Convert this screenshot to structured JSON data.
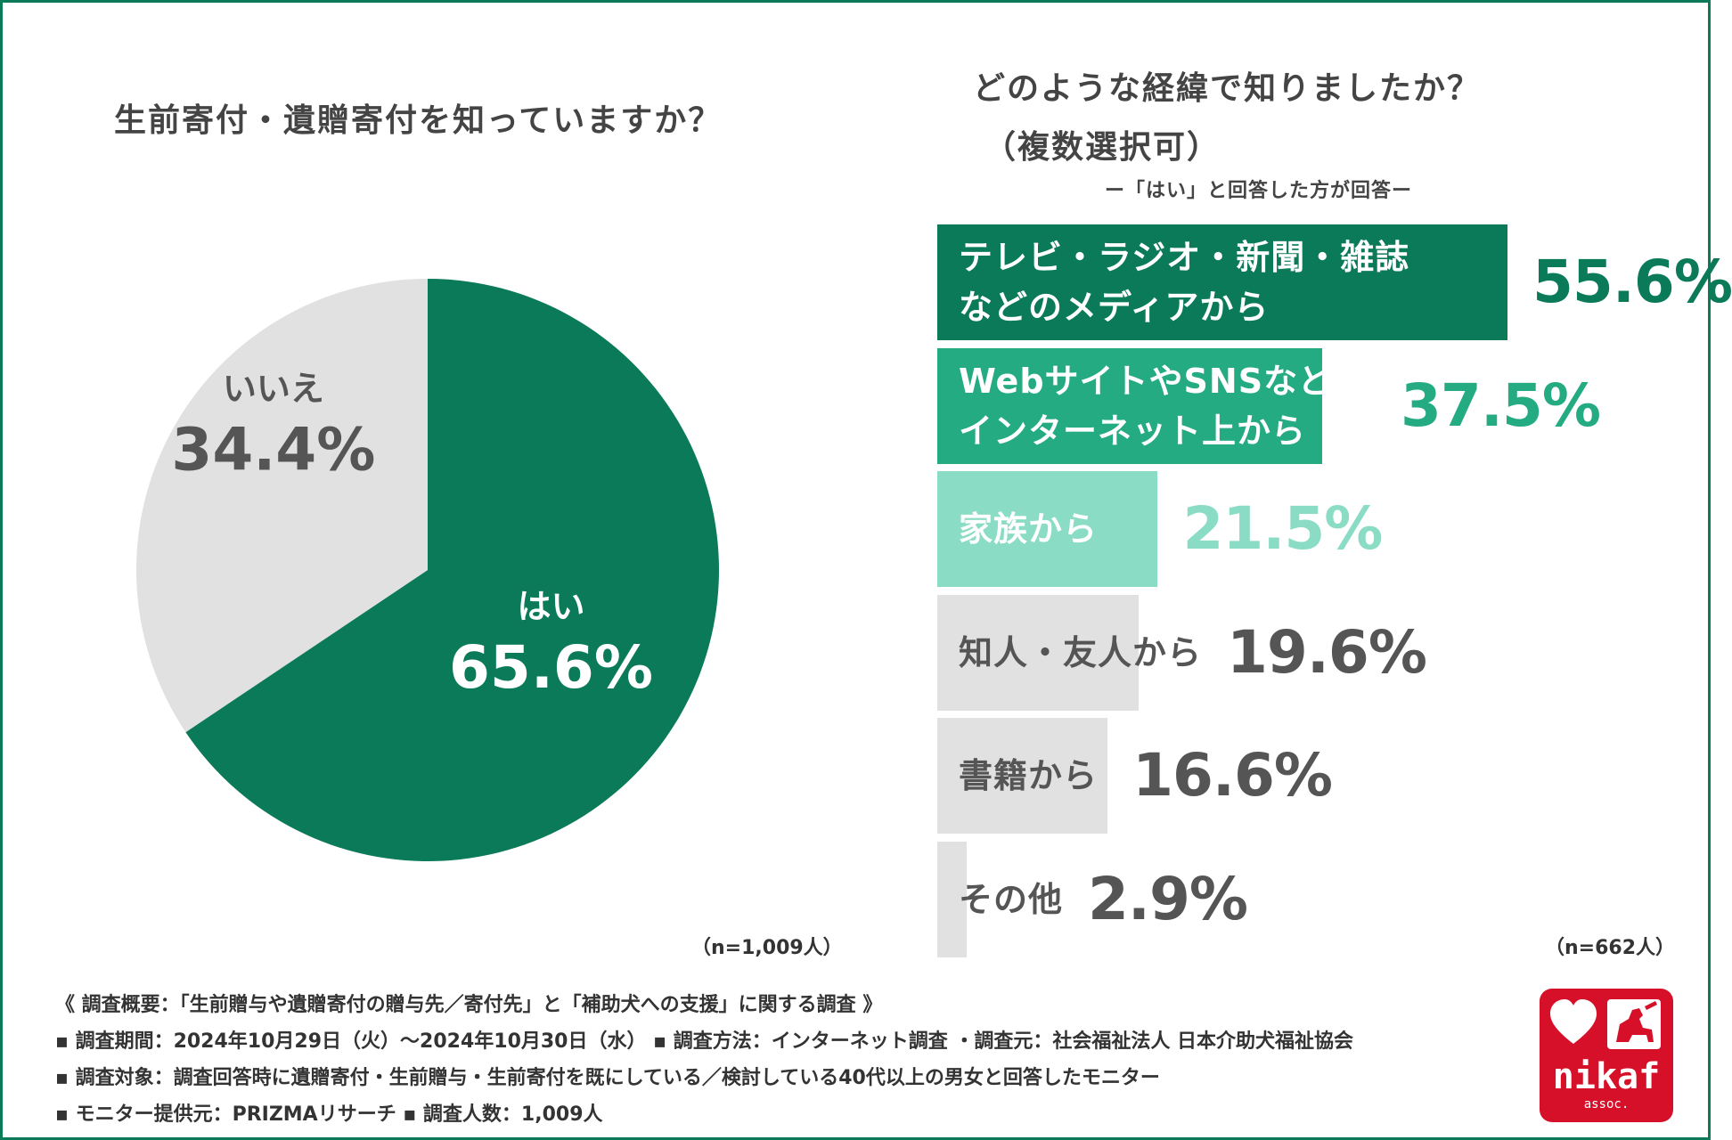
{
  "left_chart": {
    "title": "生前寄付・遺贈寄付を知っていますか？",
    "n_label": "（n=1,009人）"
  },
  "right_chart": {
    "title_line1": "どのような経緯で知りましたか？",
    "title_line2": "（複数選択可）",
    "subtitle": "ー「はい」と回答した方が回答ー",
    "n_label": "（n=662人）"
  },
  "colors": {
    "dark_green": "#0a7a58",
    "mid_green": "#25ab82",
    "light_green": "#8adcc4",
    "grey": "#e1e1e1",
    "dark_text": "#555555"
  },
  "chart_data": [
    {
      "type": "pie",
      "slices": [
        {
          "label": "はい",
          "value": 65.6,
          "value_label": "65.6%",
          "color": "#0a7a58",
          "text_color": "#ffffff"
        },
        {
          "label": "いいえ",
          "value": 34.4,
          "value_label": "34.4%",
          "color": "#e1e1e1",
          "text_color": "#555555"
        }
      ]
    },
    {
      "type": "bar",
      "orientation": "horizontal",
      "xlim": [
        0,
        100
      ],
      "bars": [
        {
          "label_lines": [
            "テレビ・ラジオ・新聞・雑誌",
            "などのメディアから"
          ],
          "value": 55.6,
          "value_label": "55.6%",
          "color": "#0a7a58",
          "label_color": "#ffffff",
          "value_color": "#0a7a58"
        },
        {
          "label_lines": [
            "WebサイトやSNSなど",
            "インターネット上から"
          ],
          "value": 37.5,
          "value_label": "37.5%",
          "color": "#25ab82",
          "label_color": "#ffffff",
          "value_color": "#25ab82"
        },
        {
          "label_lines": [
            "家族から"
          ],
          "value": 21.5,
          "value_label": "21.5%",
          "color": "#8adcc4",
          "label_color": "#ffffff",
          "value_color": "#8adcc4"
        },
        {
          "label_lines": [
            "知人・友人から"
          ],
          "value": 19.6,
          "value_label": "19.6%",
          "color": "#e1e1e1",
          "label_color": "#555555",
          "value_color": "#555555"
        },
        {
          "label_lines": [
            "書籍から"
          ],
          "value": 16.6,
          "value_label": "16.6%",
          "color": "#e1e1e1",
          "label_color": "#555555",
          "value_color": "#555555"
        },
        {
          "label_lines": [
            "その他"
          ],
          "value": 2.9,
          "value_label": "2.9%",
          "color": "#e1e1e1",
          "label_color": "#555555",
          "value_color": "#555555"
        }
      ]
    }
  ],
  "footer": {
    "lines": [
      "《 調査概要：「生前贈与や遺贈寄付の贈与先／寄付先」と「補助犬への支援」に関する調査 》",
      "▪ 調査期間：2024年10月29日（火）～2024年10月30日（水）  ▪ 調査方法：インターネット調査 ・調査元：社会福祉法人 日本介助犬福祉協会",
      "▪ 調査対象：調査回答時に遺贈寄付・生前贈与・生前寄付を既にしている／検討している40代以上の男女と回答したモニター",
      "▪ モニター提供元：PRIZMAリサーチ          ▪ 調査人数：1,009人"
    ]
  },
  "logo": {
    "name": "nikaf",
    "sub": "assoc."
  }
}
